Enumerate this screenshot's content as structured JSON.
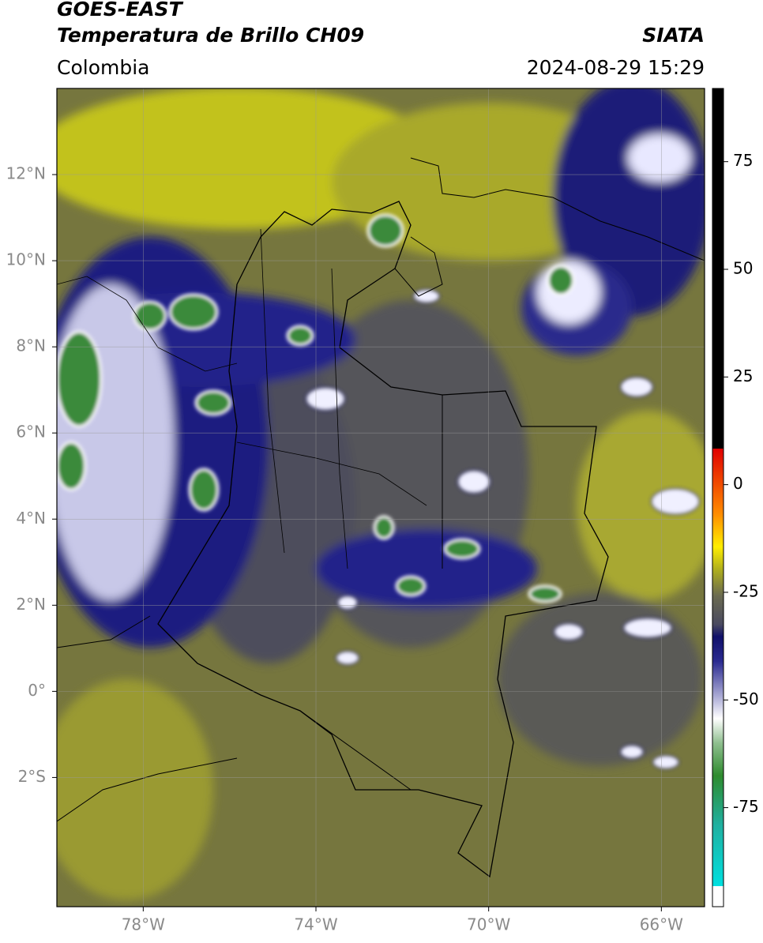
{
  "header": {
    "title": "GOES-EAST",
    "subtitle": "Temperatura de Brillo CH09",
    "source": "SIATA",
    "region": "Colombia",
    "datetime": "2024-08-29 15:29"
  },
  "map": {
    "xlim": [
      -80,
      -65
    ],
    "ylim": [
      -5,
      14
    ],
    "xticks": [
      {
        "value": -78,
        "label": "78°W"
      },
      {
        "value": -74,
        "label": "74°W"
      },
      {
        "value": -70,
        "label": "70°W"
      },
      {
        "value": -66,
        "label": "66°W"
      }
    ],
    "yticks": [
      {
        "value": 12,
        "label": "12°N"
      },
      {
        "value": 10,
        "label": "10°N"
      },
      {
        "value": 8,
        "label": "8°N"
      },
      {
        "value": 6,
        "label": "6°N"
      },
      {
        "value": 4,
        "label": "4°N"
      },
      {
        "value": 2,
        "label": "2°N"
      },
      {
        "value": 0,
        "label": "0°"
      },
      {
        "value": -2,
        "label": "2°S"
      }
    ],
    "grid": true
  },
  "colorbar": {
    "lim": [
      -98,
      92
    ],
    "ticks": [
      75,
      50,
      25,
      0,
      -25,
      -50,
      -75
    ]
  }
}
